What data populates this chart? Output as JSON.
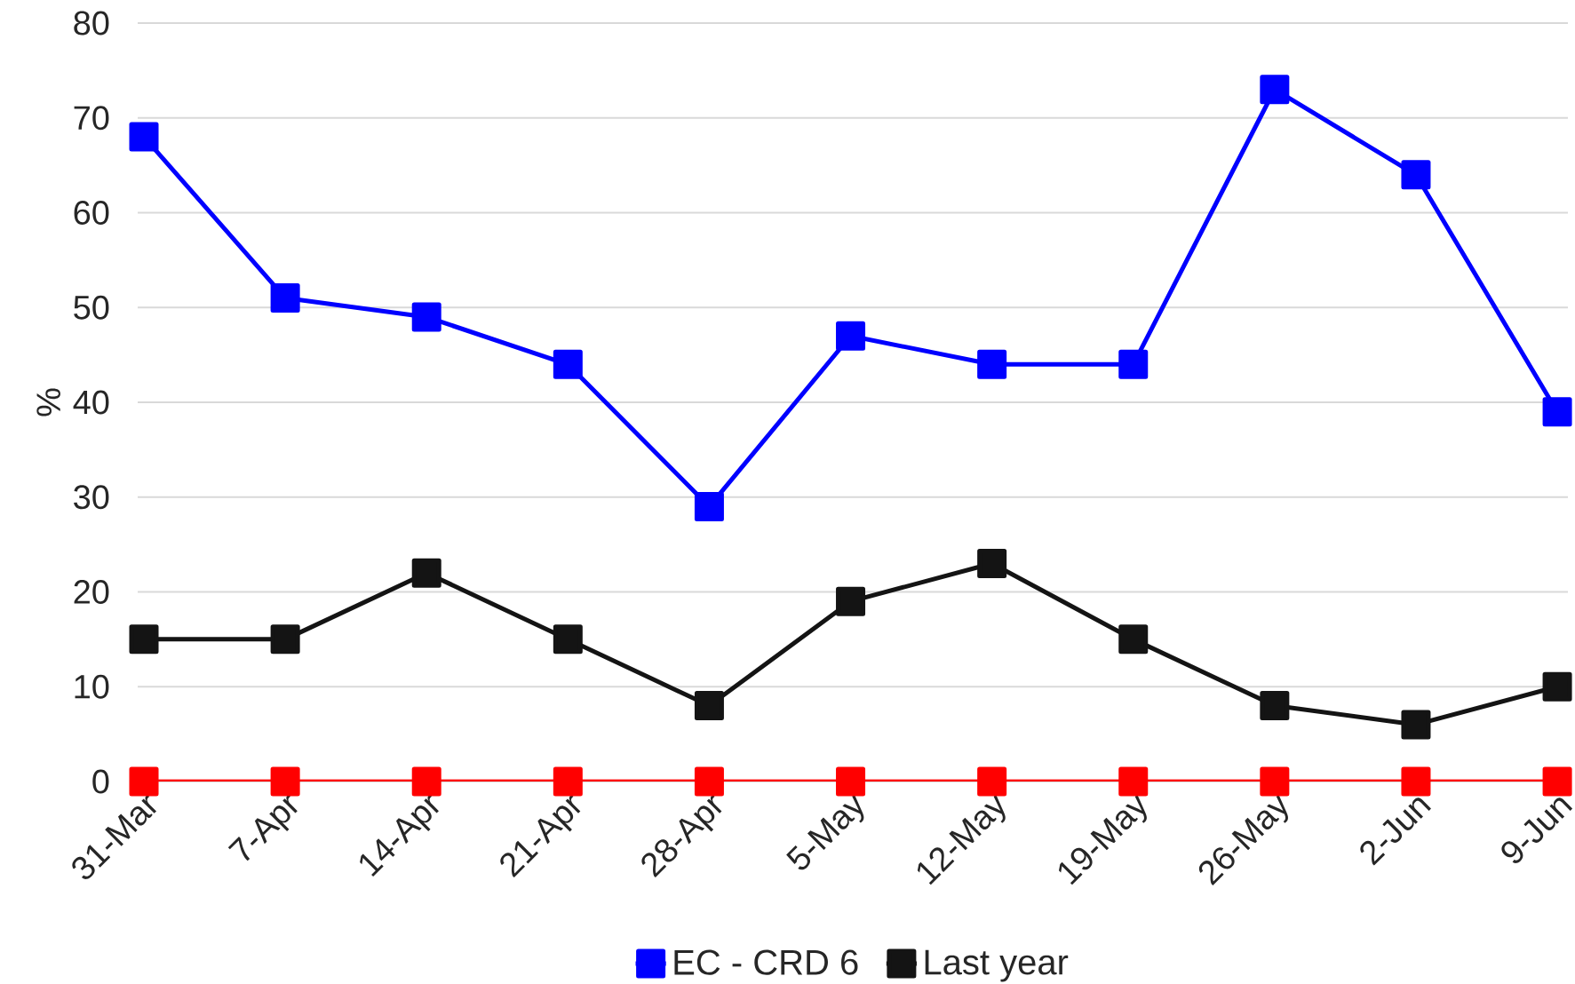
{
  "chart_data": {
    "type": "line",
    "ylabel": "%",
    "categories": [
      "31-Mar",
      "7-Apr",
      "14-Apr",
      "21-Apr",
      "28-Apr",
      "5-May",
      "12-May",
      "19-May",
      "26-May",
      "2-Jun",
      "9-Jun"
    ],
    "series": [
      {
        "name": "EC - CRD 6",
        "color": "#0000ff",
        "values": [
          68,
          51,
          49,
          44,
          29,
          47,
          44,
          44,
          73,
          64,
          39
        ]
      },
      {
        "name": "Last year",
        "color": "#141414",
        "values": [
          15,
          15,
          22,
          15,
          8,
          19,
          23,
          15,
          8,
          6,
          10
        ]
      },
      {
        "color": "#ff0000",
        "values": [
          0,
          0,
          0,
          0,
          0,
          0,
          0,
          0,
          0,
          0,
          0
        ]
      }
    ],
    "ylim": [
      0,
      80
    ],
    "yticks": [
      0,
      10,
      20,
      30,
      40,
      50,
      60,
      70,
      80
    ],
    "grid": "y",
    "legend": "bottom",
    "marker": "square",
    "line_style": "solid"
  }
}
